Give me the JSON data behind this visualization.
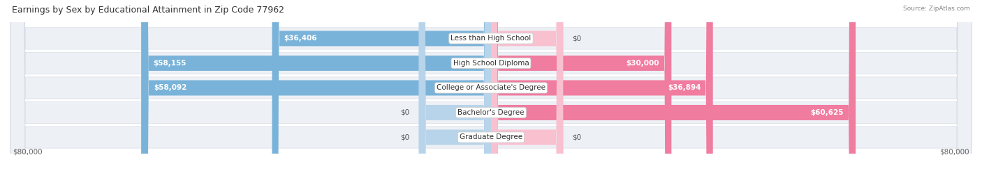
{
  "title": "Earnings by Sex by Educational Attainment in Zip Code 77962",
  "source": "Source: ZipAtlas.com",
  "categories": [
    "Less than High School",
    "High School Diploma",
    "College or Associate's Degree",
    "Bachelor's Degree",
    "Graduate Degree"
  ],
  "male_values": [
    36406,
    58155,
    58092,
    0,
    0
  ],
  "female_values": [
    0,
    30000,
    36894,
    60625,
    0
  ],
  "male_labels": [
    "$36,406",
    "$58,155",
    "$58,092",
    "$0",
    "$0"
  ],
  "female_labels": [
    "$0",
    "$30,000",
    "$36,894",
    "$60,625",
    "$0"
  ],
  "male_color": "#7ab3d9",
  "female_color": "#f07ca0",
  "male_zero_color": "#b8d4ea",
  "female_zero_color": "#f9c0d0",
  "row_bg_color": "#edf0f5",
  "row_bg_border": "#d8dce6",
  "max_value": 80000,
  "zero_bar_width": 12000,
  "title_fontsize": 9,
  "label_fontsize": 7.5,
  "category_fontsize": 7.5,
  "axis_label_fontsize": 7.5,
  "legend_fontsize": 7.5,
  "source_fontsize": 6.5
}
